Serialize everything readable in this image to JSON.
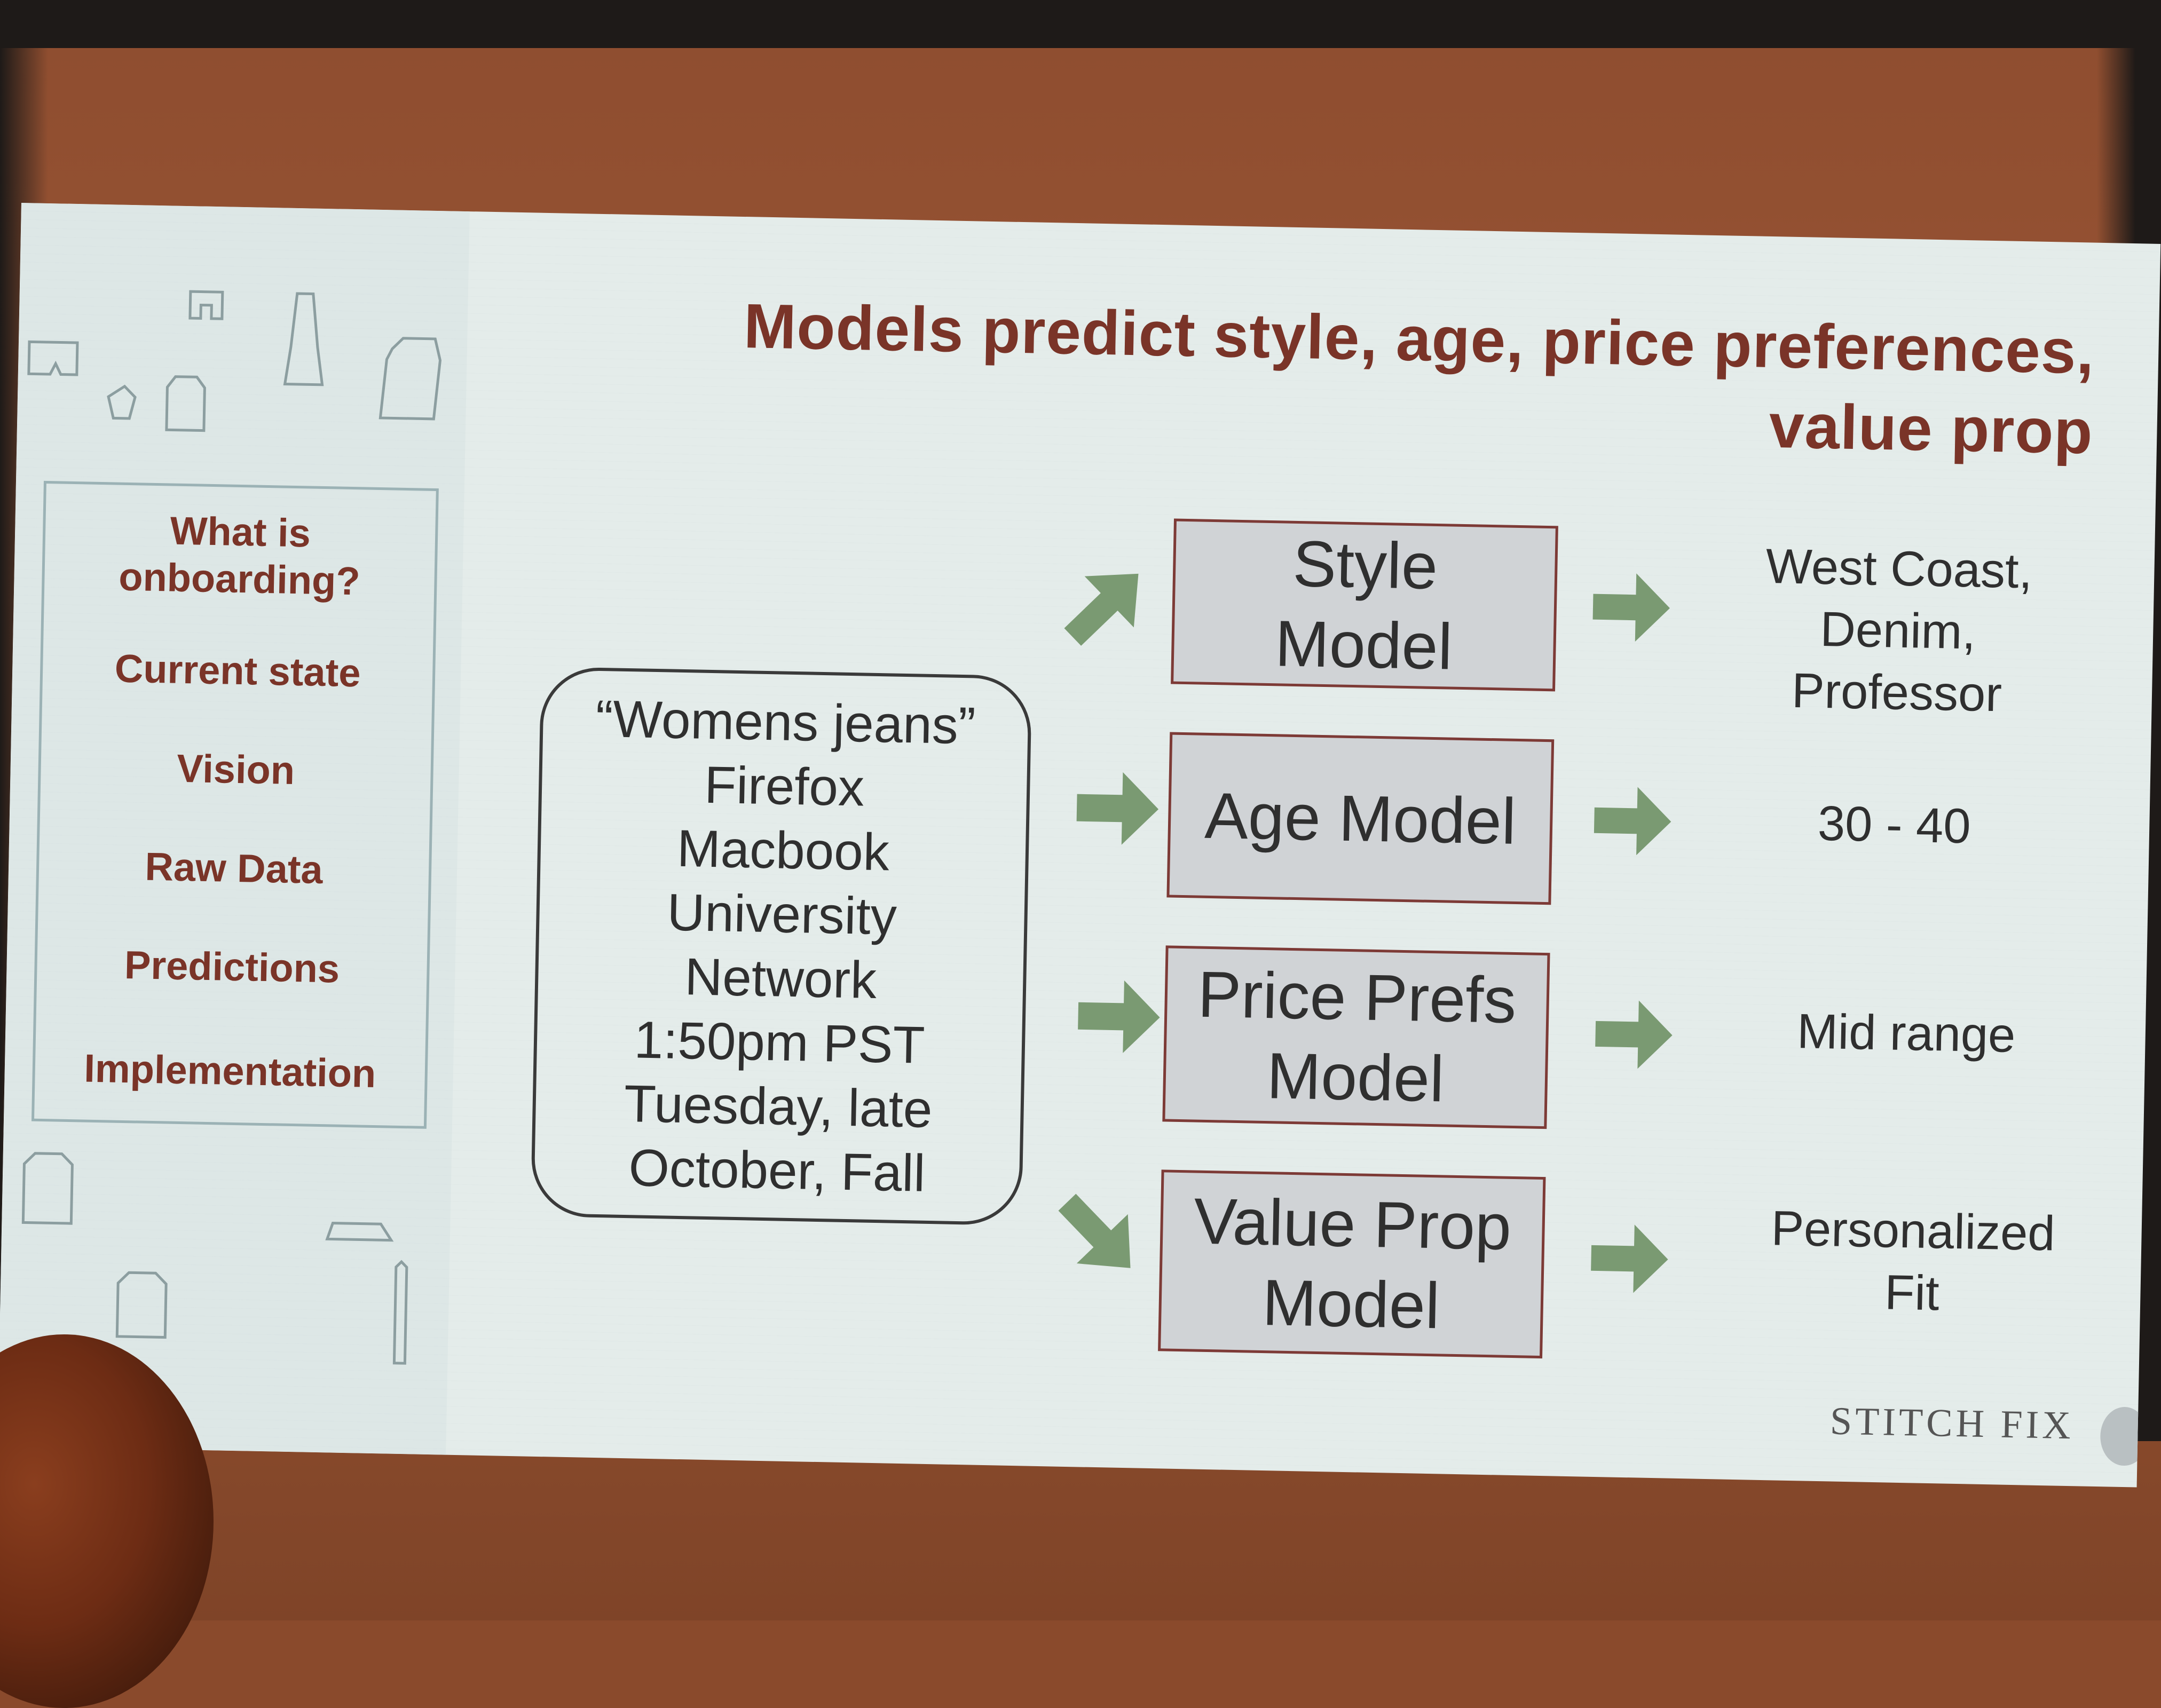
{
  "slide": {
    "title_line1": "Models predict style, age, price preferences,",
    "title_line2": "value prop",
    "brand": "STITCH FIX",
    "nav": [
      {
        "label_line1": "What is",
        "label_line2": "onboarding?"
      },
      {
        "label_line1": "Current state",
        "label_line2": ""
      },
      {
        "label_line1": "Vision",
        "label_line2": ""
      },
      {
        "label_line1": "Raw Data",
        "label_line2": ""
      },
      {
        "label_line1": "Predictions",
        "label_line2": ""
      },
      {
        "label_line1": "Implementation",
        "label_line2": ""
      }
    ],
    "inputs": [
      "“Womens jeans”",
      "Firefox",
      "Macbook",
      "University",
      "Network",
      "1:50pm PST",
      "Tuesday, late",
      "October, Fall"
    ],
    "models": [
      {
        "line1": "Style",
        "line2": "Model",
        "output": [
          "West Coast,",
          "Denim,",
          "Professor"
        ]
      },
      {
        "line1": "Age Model",
        "line2": "",
        "output": [
          "30 - 40"
        ]
      },
      {
        "line1": "Price Prefs",
        "line2": "Model",
        "output": [
          "Mid range"
        ]
      },
      {
        "line1": "Value Prop",
        "line2": "Model",
        "output": [
          "Personalized",
          "Fit"
        ]
      }
    ],
    "colors": {
      "title": "#7a3428",
      "arrow": "#7a9a72",
      "model_fill": "#d0d3d6",
      "model_border": "#7d3a36",
      "slide_bg": "#e4ecea"
    }
  }
}
